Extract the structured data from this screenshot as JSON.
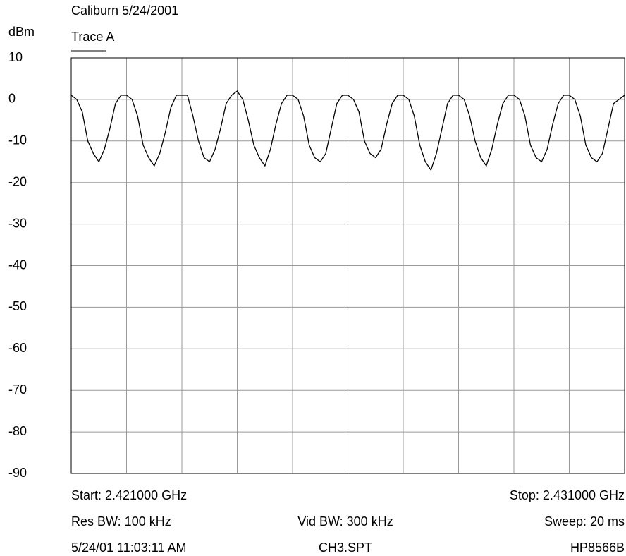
{
  "chart_data": {
    "type": "line",
    "title": "Caliburn 5/24/2001",
    "subtitle": "Trace A",
    "y_label": "dBm",
    "ylim": [
      -90,
      10
    ],
    "yticks": [
      10,
      0,
      -10,
      -20,
      -30,
      -40,
      -50,
      -60,
      -70,
      -80,
      -90
    ],
    "grid": true,
    "color": "#000000",
    "values": [
      1,
      0,
      -3,
      -10,
      -13,
      -15,
      -12,
      -7,
      -1,
      1,
      1,
      0,
      -4,
      -11,
      -14,
      -16,
      -13,
      -8,
      -2,
      1,
      1,
      1,
      -4,
      -10,
      -14,
      -15,
      -12,
      -7,
      -1,
      1,
      2,
      0,
      -5,
      -11,
      -14,
      -16,
      -12,
      -6,
      -1,
      1,
      1,
      0,
      -4,
      -11,
      -14,
      -15,
      -13,
      -7,
      -1,
      1,
      1,
      0,
      -3,
      -10,
      -13,
      -14,
      -12,
      -6,
      -1,
      1,
      1,
      0,
      -4,
      -11,
      -15,
      -17,
      -13,
      -7,
      -1,
      1,
      1,
      0,
      -4,
      -10,
      -14,
      -16,
      -12,
      -6,
      -1,
      1,
      1,
      0,
      -4,
      -11,
      -14,
      -15,
      -12,
      -6,
      -1,
      1,
      1,
      0,
      -4,
      -11,
      -14,
      -15,
      -13,
      -7,
      -1,
      0,
      1
    ],
    "footer": {
      "start": "Start: 2.421000 GHz",
      "stop": "Stop: 2.431000 GHz",
      "res_bw": "Res BW: 100 kHz",
      "vid_bw": "Vid BW: 300 kHz",
      "sweep": "Sweep: 20 ms",
      "timestamp": "5/24/01 11:03:11 AM",
      "file": "CH3.SPT",
      "instrument": "HP8566B"
    }
  }
}
